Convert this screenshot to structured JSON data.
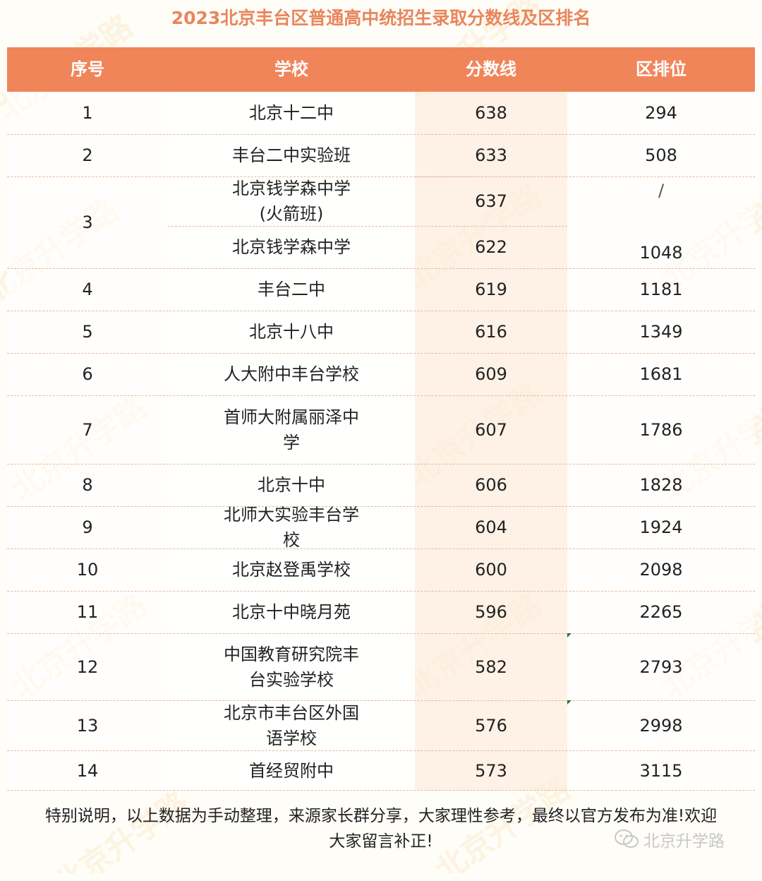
{
  "title": "2023北京丰台区普通高中统招生录取分数线及区排名",
  "headers": [
    "序号",
    "学校",
    "分数线",
    "区排位"
  ],
  "rows": [
    {
      "no": "1",
      "school": "北京十二中",
      "score": "638",
      "rank": "294"
    },
    {
      "no": "2",
      "school": "丰台二中实验班",
      "score": "633",
      "rank": "508"
    },
    {
      "no": "3",
      "school": "北京钱学森中学\n(火箭班)",
      "score": "637",
      "rank": "/"
    },
    {
      "no": "",
      "school": "北京钱学森中学",
      "score": "622",
      "rank": "1048"
    },
    {
      "no": "4",
      "school": "丰台二中",
      "score": "619",
      "rank": "1181"
    },
    {
      "no": "5",
      "school": "北京十八中",
      "score": "616",
      "rank": "1349"
    },
    {
      "no": "6",
      "school": "人大附中丰台学校",
      "score": "609",
      "rank": "1681"
    },
    {
      "no": "7",
      "school": "首师大附属丽泽中\n学",
      "score": "607",
      "rank": "1786"
    },
    {
      "no": "8",
      "school": "北京十中",
      "score": "606",
      "rank": "1828"
    },
    {
      "no": "9",
      "school": "北师大实验丰台学\n校",
      "score": "604",
      "rank": "1924"
    },
    {
      "no": "10",
      "school": "北京赵登禹学校",
      "score": "600",
      "rank": "2098"
    },
    {
      "no": "11",
      "school": "北京十中晓月苑",
      "score": "596",
      "rank": "2265"
    },
    {
      "no": "12",
      "school": "中国教育研究院丰\n台实验学校",
      "score": "582",
      "rank": "2793"
    },
    {
      "no": "13",
      "school": "北京市丰台区外国\n语学校",
      "score": "576",
      "rank": "2998"
    },
    {
      "no": "14",
      "school": "首经贸附中",
      "score": "573",
      "rank": "3115"
    }
  ],
  "footer": {
    "line1": "特别说明，以上数据为手动整理，来源家长群分享，大家理性参考，最终以官方发布为准!欢迎",
    "line2": "大家留言补正!"
  },
  "brand": {
    "icon": "wechat-icon",
    "name": "北京升学路"
  },
  "watermark": "北京升学路",
  "colors": {
    "title": "#e9865c",
    "header_bg": "#f0855a",
    "score_col_bg": "#fdecde"
  }
}
